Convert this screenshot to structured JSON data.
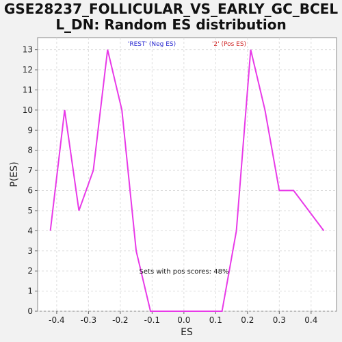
{
  "chart_data": {
    "type": "line",
    "title_lines": [
      "GSE28237_FOLLICULAR_VS_EARLY_GC_BCEL",
      "L_DN: Random ES distribution"
    ],
    "xlabel": "ES",
    "ylabel": "P(ES)",
    "xlim": [
      -0.46,
      0.48
    ],
    "ylim": [
      0,
      13.6
    ],
    "x_ticks": [
      -0.4,
      -0.3,
      -0.2,
      -0.1,
      0.0,
      0.1,
      0.2,
      0.3,
      0.4
    ],
    "x_tick_labels": [
      "-0.4",
      "-0.3",
      "-0.2",
      "-0.1",
      "0.0",
      "0.1",
      "0.2",
      "0.3",
      "0.4"
    ],
    "y_ticks": [
      0,
      1,
      2,
      3,
      4,
      5,
      6,
      7,
      8,
      9,
      10,
      11,
      12,
      13
    ],
    "y_tick_labels": [
      "0",
      "1",
      "2",
      "3",
      "4",
      "5",
      "6",
      "7",
      "8",
      "9",
      "10",
      "11",
      "12",
      "13"
    ],
    "grid": true,
    "legend": [
      {
        "label": "'REST' (Neg ES)",
        "color": "#2a2ad0"
      },
      {
        "label": "'2' (Pos ES)",
        "color": "#d02a2a"
      }
    ],
    "annotation": "Sets with pos scores: 48%",
    "series": [
      {
        "color": "#e83ae8",
        "x": [
          -0.42,
          -0.375,
          -0.33,
          -0.285,
          -0.24,
          -0.195,
          -0.15,
          -0.105,
          -0.06,
          0.075,
          0.12,
          0.165,
          0.21,
          0.255,
          0.3,
          0.345,
          0.44
        ],
        "y": [
          4,
          10,
          5,
          7,
          13,
          10,
          3,
          0,
          0,
          0,
          0,
          4,
          13,
          10,
          6,
          6,
          4
        ]
      }
    ]
  }
}
